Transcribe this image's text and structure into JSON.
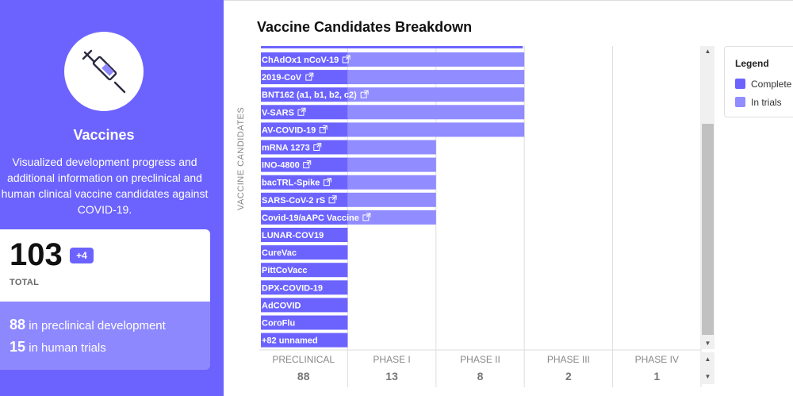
{
  "sidebar": {
    "title": "Vaccines",
    "description": "Visualized development progress and additional information on preclinical and human clinical vaccine candidates against COVID-19.",
    "icon": "syringe-icon",
    "accent": "#6c63ff",
    "total": "103",
    "badge": "+4",
    "total_label": "TOTAL",
    "preclinical_count": "88",
    "preclinical_text": " in preclinical development",
    "trials_count": "15",
    "trials_text": " in human trials"
  },
  "chart_data": {
    "type": "bar",
    "orientation": "horizontal-stacked",
    "title": "Vaccine Candidates Breakdown",
    "ylabel": "VACCINE CANDIDATES",
    "phases": [
      "PRECLINICAL",
      "PHASE I",
      "PHASE II",
      "PHASE III",
      "PHASE IV"
    ],
    "phase_counts": [
      "88",
      "13",
      "8",
      "2",
      "1"
    ],
    "categories": [
      "ChAdOx1 nCoV-19",
      "2019-CoV",
      "BNT162 (a1, b1, b2, c2)",
      "V-SARS",
      "AV-COVID-19",
      "mRNA 1273",
      "INO-4800",
      "bacTRL-Spike",
      "SARS-CoV-2 rS",
      "Covid-19/aAPC Vaccine",
      "LUNAR-COV19",
      "CureVac",
      "PittCoVacc",
      "DPX-COVID-19",
      "AdCOVID",
      "CoroFlu",
      "+82 unnamed"
    ],
    "external_link": [
      true,
      true,
      true,
      true,
      true,
      true,
      true,
      true,
      true,
      true,
      false,
      false,
      false,
      false,
      false,
      false,
      false
    ],
    "series": [
      {
        "name": "Complete",
        "color": "#6c63ff",
        "values": [
          1,
          1,
          1,
          1,
          1,
          1,
          1,
          1,
          1,
          1,
          1,
          1,
          1,
          1,
          1,
          1,
          1
        ]
      },
      {
        "name": "In trials",
        "color": "#918cff",
        "values": [
          2,
          2,
          2,
          2,
          2,
          1,
          1,
          1,
          1,
          1,
          0,
          0,
          0,
          0,
          0,
          0,
          0
        ]
      }
    ],
    "xlim": [
      0,
      5
    ],
    "grid": true,
    "legend_position": "right"
  },
  "legend": {
    "title": "Legend",
    "items": [
      {
        "label": "Complete",
        "color": "#6c63ff"
      },
      {
        "label": "In trials",
        "color": "#918cff"
      }
    ]
  }
}
